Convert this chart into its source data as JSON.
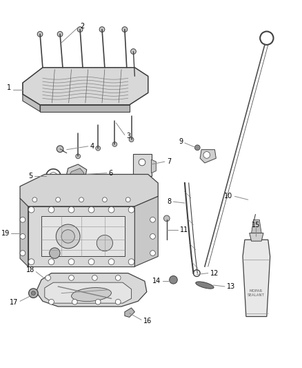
{
  "background_color": "#ffffff",
  "line_color": "#404040",
  "label_color": "#000000",
  "callout_color": "#888888",
  "fig_width": 4.38,
  "fig_height": 5.33,
  "dpi": 100
}
